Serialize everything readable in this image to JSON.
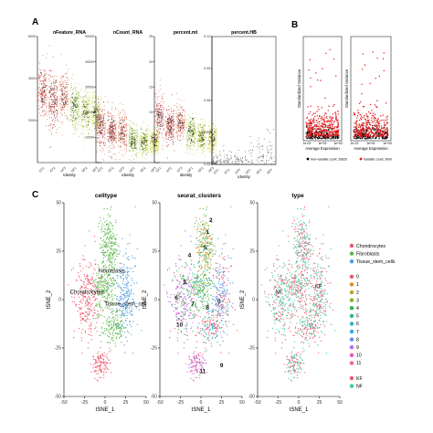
{
  "panel_labels": [
    "A",
    "B",
    "C"
  ],
  "chart_data": [
    {
      "id": "A",
      "type": "violin-scatter",
      "xlabel": "Identity",
      "categories": [
        "KF1",
        "KF2",
        "KF3",
        "NF1",
        "NF2",
        "NF3"
      ],
      "colors": [
        "#d9534f",
        "#c0392b",
        "#e8735a",
        "#9bbf3b",
        "#b9cf3a",
        "#d1d93b"
      ],
      "panels": [
        {
          "title": "nFeature_RNA",
          "ylim": [
            0,
            6000
          ],
          "yticks": [
            "2000",
            "4000",
            "6000"
          ],
          "medians": [
            3400,
            3000,
            3100,
            2600,
            2400,
            2300
          ],
          "spread": [
            1500,
            1500,
            1400,
            1300,
            1200,
            1100
          ]
        },
        {
          "title": "nCount_RNA",
          "ylim": [
            0,
            50000
          ],
          "yticks": [
            "10000",
            "20000",
            "30000",
            "40000",
            "50000"
          ],
          "medians": [
            14000,
            12000,
            12000,
            9000,
            8500,
            8000
          ],
          "spread": [
            10000,
            9000,
            9000,
            7000,
            6500,
            6000
          ]
        },
        {
          "title": "percent.mt",
          "ylim": [
            0,
            25
          ],
          "yticks": [
            "5",
            "10",
            "15",
            "20",
            "25"
          ],
          "medians": [
            9,
            7,
            8,
            6,
            5,
            5
          ],
          "spread": [
            5,
            4,
            4,
            4,
            3,
            3
          ]
        },
        {
          "title": "percent.HB",
          "ylim": [
            0,
            0.12
          ],
          "yticks": [
            "0.00",
            "0.03",
            "0.06",
            "0.09",
            "0.12"
          ],
          "medians": [
            0.002,
            0.002,
            0.002,
            0.003,
            0.004,
            0.004
          ],
          "spread": [
            0.01,
            0.015,
            0.012,
            0.02,
            0.025,
            0.03
          ]
        }
      ]
    },
    {
      "id": "B",
      "type": "scatter",
      "xlabel": "Average Expression",
      "ylabel": "Standardized Variance",
      "xticks": [
        "1e-02",
        "1e+01",
        "1e+03"
      ],
      "series": [
        {
          "name": "Non-variable count: 20826",
          "color": "#000000"
        },
        {
          "name": "Variable count: 3000",
          "color": "#e41a1c"
        }
      ]
    },
    {
      "id": "C",
      "type": "scatter",
      "xlabel": "tSNE_1",
      "ylabel": "tSNE_2",
      "xlim": [
        -50,
        50
      ],
      "ylim": [
        -50,
        50
      ],
      "xticks": [
        "-50",
        "-25",
        "0",
        "25",
        "50"
      ],
      "yticks": [
        "-50",
        "-25",
        "0",
        "25",
        "50"
      ],
      "panels": [
        {
          "title": "celltype",
          "labels": [
            "Fibroblasts",
            "Chondrocytes",
            "Tissue_stem_cell"
          ]
        },
        {
          "title": "seurat_clusters",
          "labels": [
            "0",
            "1",
            "2",
            "3",
            "4",
            "5",
            "6",
            "7",
            "8",
            "9",
            "10",
            "11"
          ]
        },
        {
          "title": "type",
          "labels": [
            "KF",
            "NF"
          ]
        }
      ],
      "legends": [
        {
          "entries": [
            {
              "name": "Chondrocytes",
              "color": "#f0566b"
            },
            {
              "name": "Fibroblasts",
              "color": "#5ab54a"
            },
            {
              "name": "Tissue_stem_cells",
              "color": "#4c9be8"
            }
          ]
        },
        {
          "entries": [
            {
              "name": "0",
              "color": "#f0566b"
            },
            {
              "name": "1",
              "color": "#de8c2b"
            },
            {
              "name": "2",
              "color": "#b5a22a"
            },
            {
              "name": "3",
              "color": "#7fb22b"
            },
            {
              "name": "4",
              "color": "#32b34a"
            },
            {
              "name": "5",
              "color": "#2bb78a"
            },
            {
              "name": "6",
              "color": "#2bb5b8"
            },
            {
              "name": "7",
              "color": "#33a7e0"
            },
            {
              "name": "8",
              "color": "#6a8cf0"
            },
            {
              "name": "9",
              "color": "#b06cf0"
            },
            {
              "name": "10",
              "color": "#e055c8"
            },
            {
              "name": "11",
              "color": "#f0609a"
            }
          ]
        },
        {
          "entries": [
            {
              "name": "KF",
              "color": "#f0566b"
            },
            {
              "name": "NF",
              "color": "#3cc9a6"
            }
          ]
        }
      ]
    }
  ]
}
